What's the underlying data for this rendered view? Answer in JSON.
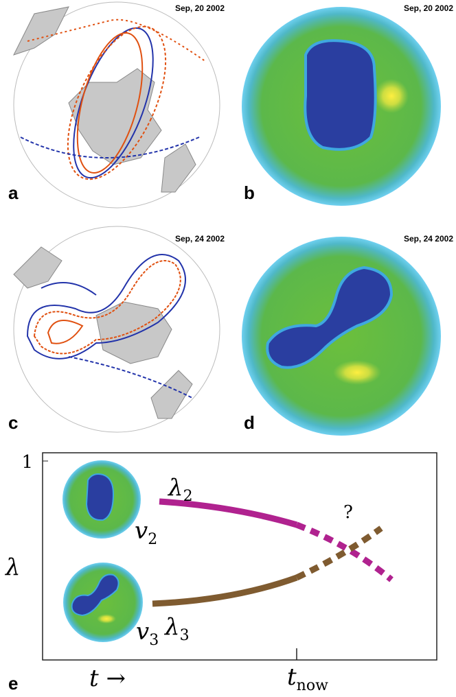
{
  "panels": [
    {
      "label": "a",
      "date": "Sep, 20 2002"
    },
    {
      "label": "b",
      "date": "Sep, 20 2002"
    },
    {
      "label": "c",
      "date": "Sep, 24 2002"
    },
    {
      "label": "d",
      "date": "Sep, 24 2002"
    }
  ],
  "plot": {
    "label": "e",
    "y_tick": "1",
    "y_label": "λ",
    "curve_2": {
      "base": "λ",
      "sub": "2"
    },
    "curve_3": {
      "base": "λ",
      "sub": "3"
    },
    "vector_2": {
      "base": "v",
      "sub": "2"
    },
    "vector_3": {
      "base": "v",
      "sub": "3"
    },
    "question": "?",
    "x_label": "t →",
    "t_now": {
      "base": "t",
      "sub": "now"
    }
  }
}
